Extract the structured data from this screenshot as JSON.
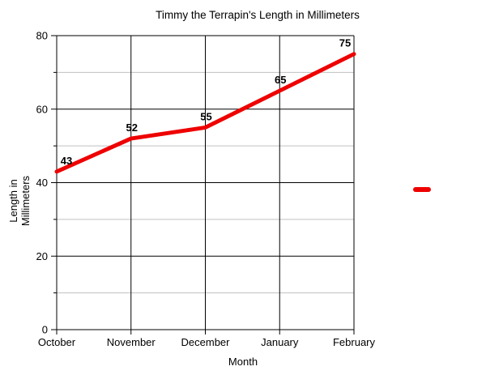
{
  "chart_data": {
    "type": "line",
    "title": "Timmy the Terrapin's Length in Millimeters",
    "xlabel": "Month",
    "ylabel": "Length in Millimeters",
    "ylabel_lines": [
      "Length in",
      "Millimeters"
    ],
    "categories": [
      "October",
      "November",
      "December",
      "January",
      "February"
    ],
    "values": [
      43,
      52,
      55,
      65,
      75
    ],
    "data_labels": [
      "43",
      "52",
      "55",
      "65",
      "75"
    ],
    "ylim": [
      0,
      80
    ],
    "y_major_ticks": [
      0,
      20,
      40,
      60,
      80
    ],
    "y_minor_ticks": [
      10,
      30,
      50,
      70
    ],
    "line_color": "#ee0000",
    "colors": {
      "axis_and_major_grid": "#000000",
      "minor_grid": "#c0c0c0",
      "background": "#ffffff",
      "text": "#000000"
    },
    "grid": "major horizontal and vertical black lines, minor horizontal light-gray lines",
    "legend": {
      "position": "right-middle",
      "marker": "red line dash",
      "label": ""
    }
  }
}
